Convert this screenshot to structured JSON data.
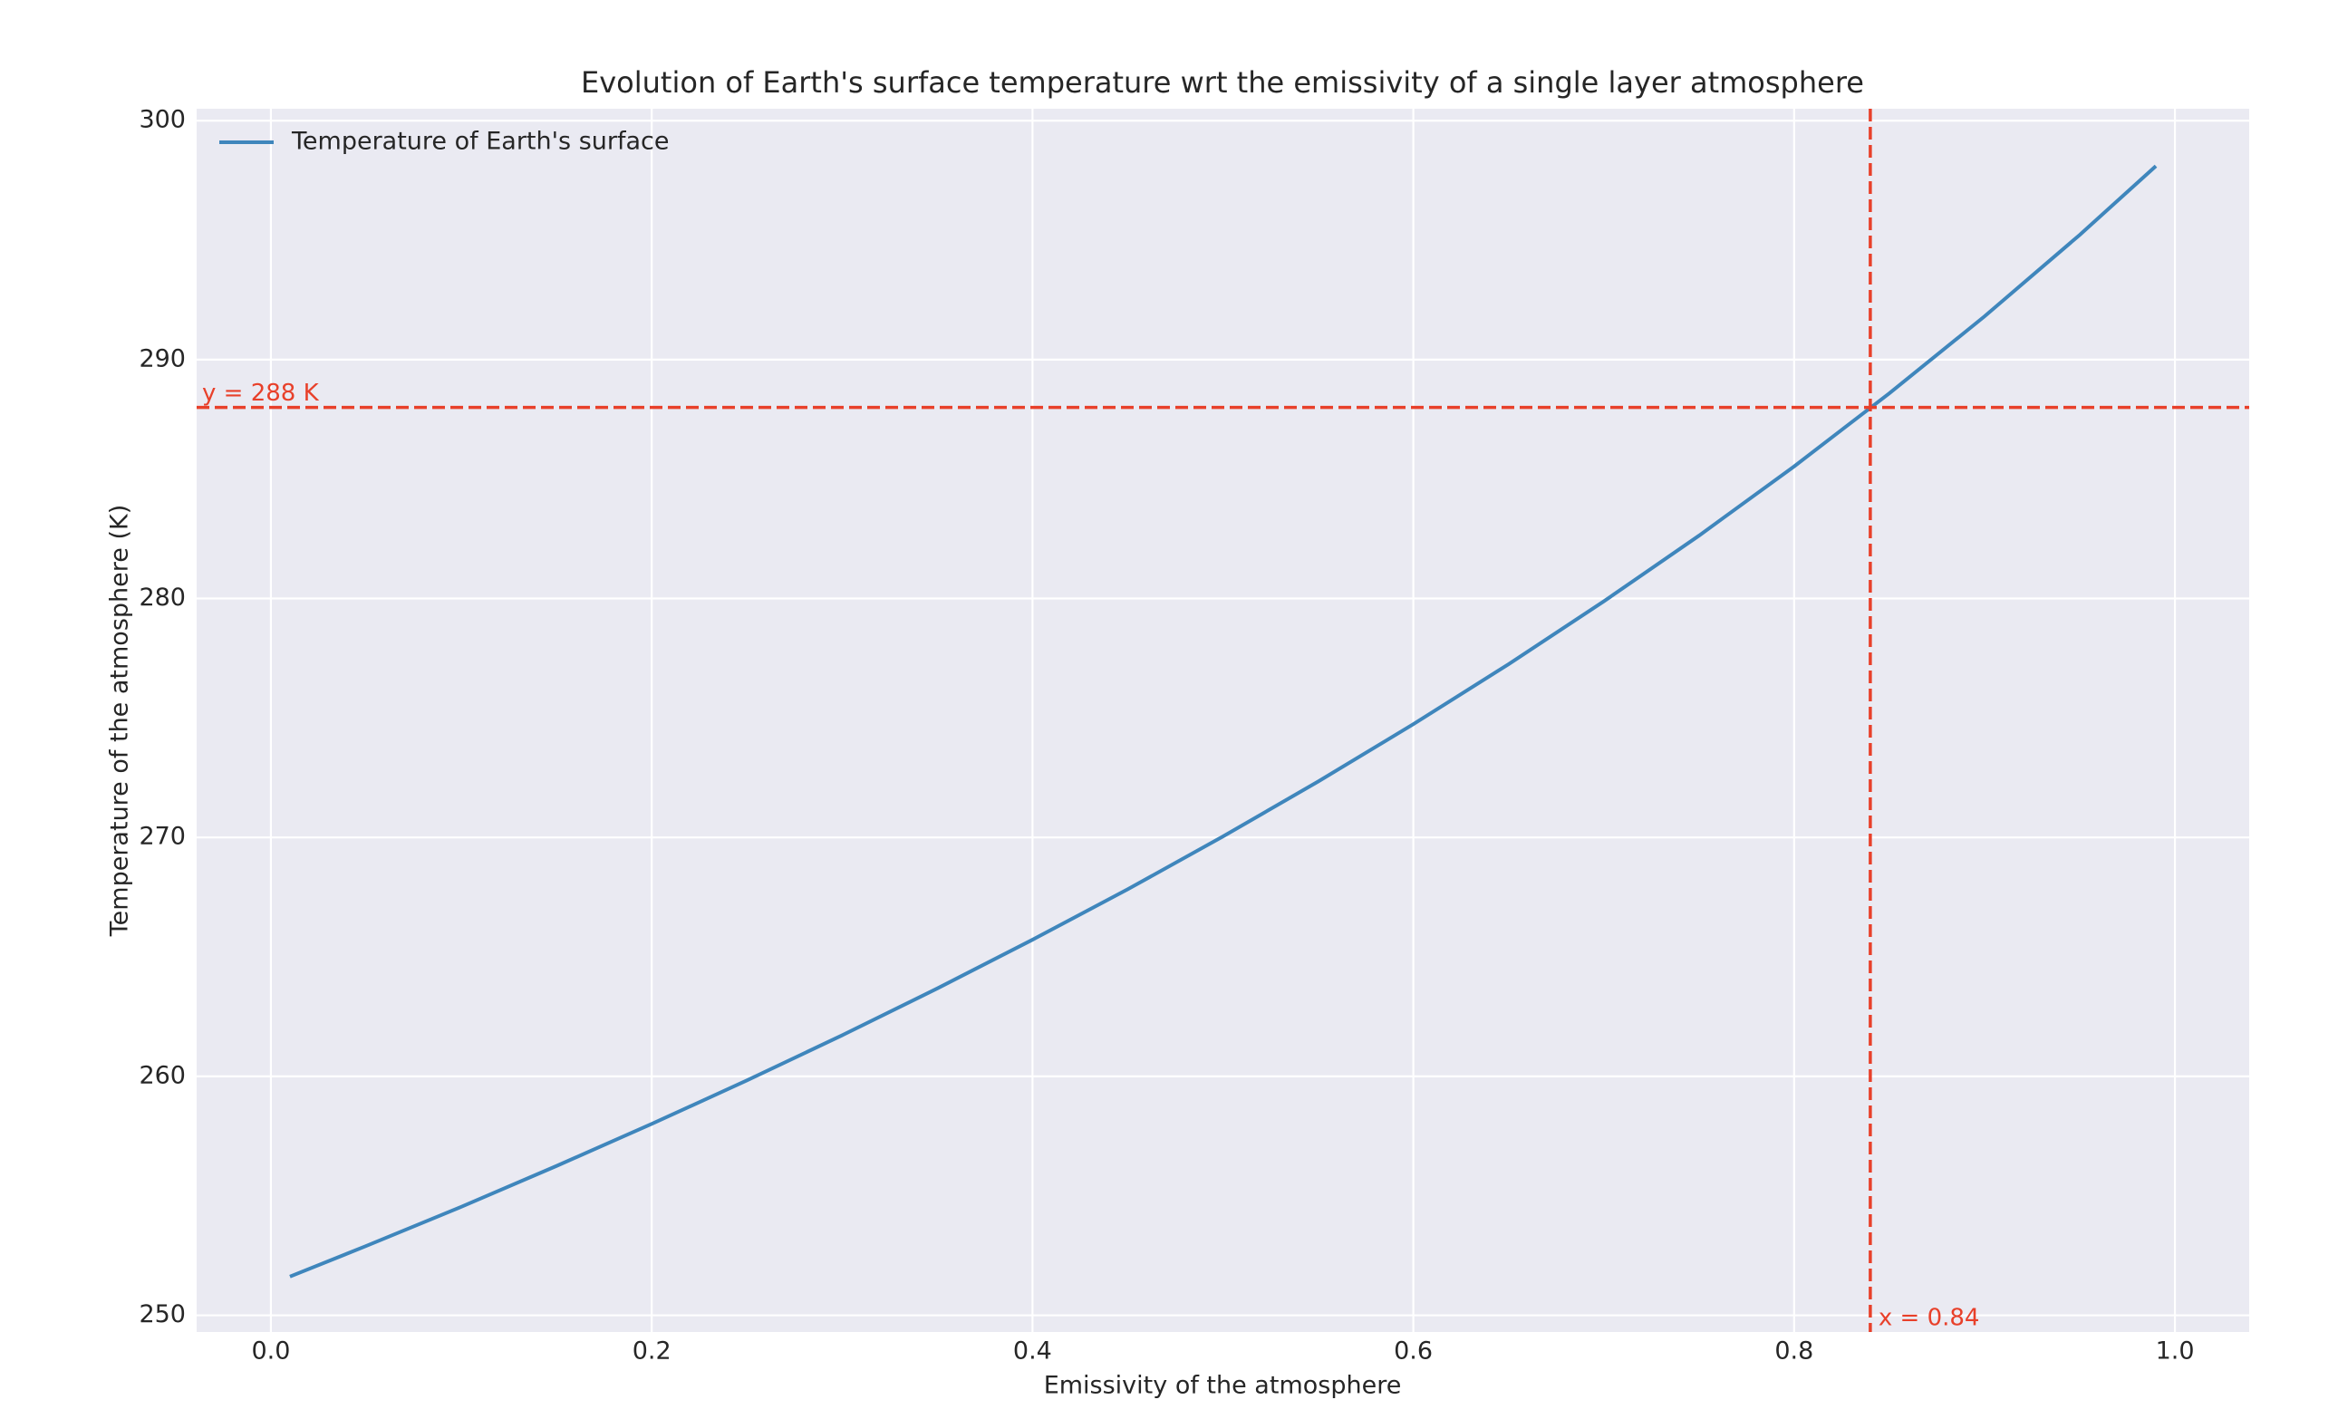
{
  "chart_data": {
    "type": "line",
    "title": "Evolution of Earth's surface temperature wrt the emissivity of a single layer atmosphere",
    "xlabel": "Emissivity of the atmosphere",
    "ylabel": "Temperature of the atmosphere (K)",
    "x": [
      0.01,
      0.05,
      0.1,
      0.15,
      0.2,
      0.25,
      0.3,
      0.35,
      0.4,
      0.45,
      0.5,
      0.55,
      0.6,
      0.65,
      0.7,
      0.75,
      0.8,
      0.85,
      0.9,
      0.95,
      0.99
    ],
    "series": [
      {
        "name": "Temperature of Earth's surface",
        "color": "#3f86bc",
        "values": [
          251.62,
          252.9,
          254.54,
          256.25,
          258.01,
          259.83,
          261.72,
          263.68,
          265.72,
          267.83,
          270.04,
          272.34,
          274.74,
          277.25,
          279.88,
          282.63,
          285.53,
          288.59,
          291.81,
          295.22,
          298.1
        ]
      }
    ],
    "reference_lines": [
      {
        "axis": "y",
        "value": 288,
        "label": "y = 288 K",
        "color": "#e8402a"
      },
      {
        "axis": "x",
        "value": 0.84,
        "label": "x = 0.84",
        "color": "#e8402a"
      }
    ],
    "xlim": [
      -0.039,
      1.039
    ],
    "ylim": [
      249.3,
      300.5
    ],
    "xticks": [
      {
        "value": 0,
        "label": "0.0"
      },
      0.2,
      0.4,
      0.6,
      0.8,
      {
        "value": 1,
        "label": "1.0"
      }
    ],
    "yticks": [
      250,
      260,
      270,
      280,
      290,
      300
    ],
    "grid": true,
    "legend": "upper-left"
  }
}
